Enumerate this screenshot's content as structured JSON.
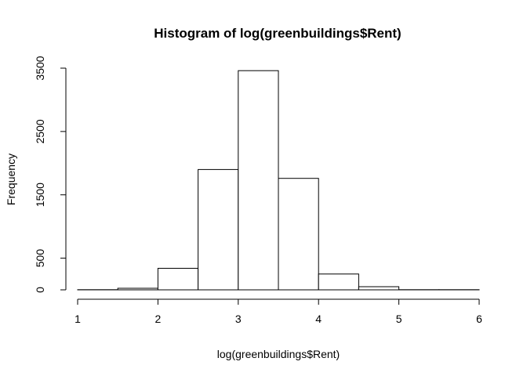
{
  "chart_data": {
    "type": "bar",
    "title": "Histogram of log(greenbuildings$Rent)",
    "xlabel": "log(greenbuildings$Rent)",
    "ylabel": "Frequency",
    "bins": [
      {
        "x0": 1.0,
        "x1": 1.5,
        "value": 2
      },
      {
        "x0": 1.5,
        "x1": 2.0,
        "value": 25
      },
      {
        "x0": 2.0,
        "x1": 2.5,
        "value": 340
      },
      {
        "x0": 2.5,
        "x1": 3.0,
        "value": 1900
      },
      {
        "x0": 3.0,
        "x1": 3.5,
        "value": 3460
      },
      {
        "x0": 3.5,
        "x1": 4.0,
        "value": 1760
      },
      {
        "x0": 4.0,
        "x1": 4.5,
        "value": 250
      },
      {
        "x0": 4.5,
        "x1": 5.0,
        "value": 50
      },
      {
        "x0": 5.0,
        "x1": 5.5,
        "value": 3
      },
      {
        "x0": 5.5,
        "x1": 6.0,
        "value": 2
      }
    ],
    "x_ticks": [
      1,
      2,
      3,
      4,
      5,
      6
    ],
    "y_ticks": [
      0,
      500,
      1500,
      2500,
      3500
    ],
    "xlim": [
      1,
      6
    ],
    "ylim": [
      0,
      3500
    ],
    "grid": false,
    "colors": {
      "bar_fill": "#ffffff",
      "bar_stroke": "#000000"
    }
  }
}
